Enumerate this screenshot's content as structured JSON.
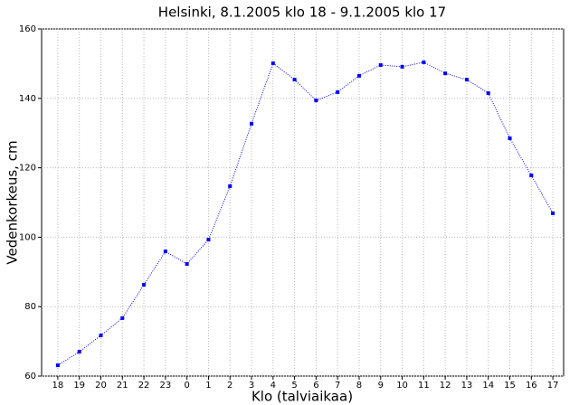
{
  "chart_data": {
    "type": "line",
    "title": "Helsinki, 8.1.2005 klo 18 - 9.1.2005 klo 17",
    "x_label": "Klo (talviaikaa)",
    "y_label": "Vedenkorkeus, cm",
    "categories": [
      "18",
      "19",
      "20",
      "21",
      "22",
      "23",
      "0",
      "1",
      "2",
      "3",
      "4",
      "5",
      "6",
      "7",
      "8",
      "9",
      "10",
      "11",
      "12",
      "13",
      "14",
      "15",
      "16",
      "17"
    ],
    "series": [
      {
        "color": "#0000ff",
        "values": [
          63.1,
          67,
          71.7,
          76.7,
          86.3,
          95.9,
          92.3,
          99.3,
          114.7,
          132.7,
          150.1,
          145.4,
          139.4,
          141.8,
          146.5,
          149.6,
          149.1,
          150.4,
          147.2,
          145.4,
          141.5,
          128.5,
          117.8,
          106.9
        ]
      }
    ],
    "ylim": [
      60,
      160
    ],
    "yticks": [
      60,
      80,
      100,
      120,
      140,
      160
    ],
    "grid": true
  }
}
